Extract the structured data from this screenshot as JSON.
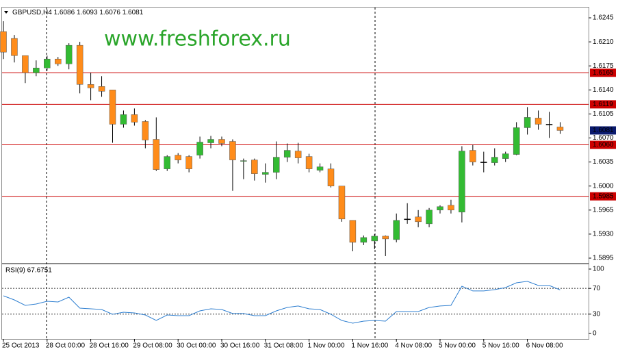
{
  "header": {
    "symbol": "GBPUSD,H4",
    "values": [
      "1.6086",
      "1.6093",
      "1.6076",
      "1.6081"
    ]
  },
  "watermark": "www.freshforex.ru",
  "chart_data": [
    {
      "type": "candlestick",
      "categories": [
        "25 Oct 2013",
        null,
        null,
        null,
        "28 Oct 00:00",
        null,
        null,
        null,
        "28 Oct 16:00",
        null,
        null,
        null,
        "29 Oct 08:00",
        null,
        null,
        null,
        "30 Oct 00:00",
        null,
        null,
        null,
        "30 Oct 16:00",
        null,
        null,
        null,
        "31 Oct 08:00",
        null,
        null,
        null,
        "1 Nov 00:00",
        null,
        null,
        null,
        "1 Nov 16:00",
        null,
        null,
        null,
        "4 Nov 08:00",
        null,
        null,
        null,
        "5 Nov 00:00",
        null,
        null,
        null,
        "5 Nov 16:00",
        null,
        null,
        null,
        "6 Nov 08:00",
        null,
        null,
        null
      ],
      "open": [
        1.6225,
        1.6215,
        1.619,
        1.6165,
        1.6172,
        1.6185,
        1.6178,
        1.6205,
        1.6148,
        1.6145,
        1.614,
        1.609,
        1.6104,
        1.6094,
        1.6068,
        1.6025,
        1.6045,
        1.6043,
        1.6045,
        1.6063,
        1.6068,
        1.6065,
        1.6036,
        1.6038,
        1.6017,
        1.602,
        1.6042,
        1.6051,
        1.6043,
        1.6023,
        1.6025,
        1.6,
        1.595,
        1.5918,
        1.592,
        1.5927,
        1.5922,
        1.5952,
        1.5955,
        1.5945,
        1.5965,
        1.5972,
        1.5962,
        1.6052,
        1.6035,
        1.6034,
        1.604,
        1.6046,
        1.6085,
        1.6099,
        1.609,
        1.6086
      ],
      "high": [
        1.624,
        1.622,
        1.619,
        1.6183,
        1.619,
        1.6188,
        1.6208,
        1.621,
        1.6165,
        1.616,
        1.614,
        1.611,
        1.6113,
        1.6096,
        1.61,
        1.6045,
        1.6048,
        1.6045,
        1.6072,
        1.6073,
        1.6072,
        1.6068,
        1.604,
        1.604,
        1.6033,
        1.6065,
        1.6062,
        1.6063,
        1.6047,
        1.6033,
        1.6033,
        1.6,
        1.595,
        1.5928,
        1.593,
        1.5928,
        1.596,
        1.5975,
        1.5965,
        1.5968,
        1.5972,
        1.598,
        1.6058,
        1.606,
        1.605,
        1.6055,
        1.605,
        1.6093,
        1.6115,
        1.611,
        1.6108,
        1.6093
      ],
      "low": [
        1.6185,
        1.618,
        1.615,
        1.616,
        1.6168,
        1.6175,
        1.617,
        1.6135,
        1.6125,
        1.613,
        1.6063,
        1.6085,
        1.6088,
        1.6055,
        1.6022,
        1.6022,
        1.6033,
        1.602,
        1.604,
        1.6055,
        1.6058,
        1.5993,
        1.601,
        1.6008,
        1.6005,
        1.601,
        1.6035,
        1.6033,
        1.602,
        1.602,
        1.5998,
        1.5948,
        1.5905,
        1.5914,
        1.5908,
        1.5898,
        1.5918,
        1.5945,
        1.594,
        1.594,
        1.596,
        1.596,
        1.5947,
        1.603,
        1.602,
        1.603,
        1.6035,
        1.6045,
        1.6075,
        1.6082,
        1.607,
        1.6076
      ],
      "close": [
        1.6195,
        1.619,
        1.6165,
        1.6172,
        1.6185,
        1.6178,
        1.6205,
        1.6148,
        1.6143,
        1.6138,
        1.609,
        1.6104,
        1.6093,
        1.6067,
        1.6024,
        1.6043,
        1.6038,
        1.6025,
        1.6064,
        1.6068,
        1.6062,
        1.6038,
        1.6037,
        1.6018,
        1.602,
        1.6042,
        1.6052,
        1.6041,
        1.6025,
        1.6028,
        1.6,
        1.5952,
        1.5918,
        1.5925,
        1.5927,
        1.5923,
        1.595,
        1.5952,
        1.5948,
        1.5965,
        1.597,
        1.5965,
        1.6051,
        1.6035,
        1.6035,
        1.6042,
        1.6047,
        1.6085,
        1.61,
        1.609,
        1.609,
        1.6081
      ],
      "up_color": "#33bb33",
      "down_color": "#ff8c1a",
      "doji_color": "#000000",
      "ylim": [
        1.5888,
        1.626
      ],
      "yticks": [
        {
          "value": 1.6245,
          "label": "1.6245"
        },
        {
          "value": 1.621,
          "label": "1.6210"
        },
        {
          "value": 1.6175,
          "label": "1.6175"
        },
        {
          "value": 1.614,
          "label": "1.6140"
        },
        {
          "value": 1.6105,
          "label": "1.6105"
        },
        {
          "value": 1.607,
          "label": "1.6070"
        },
        {
          "value": 1.6035,
          "label": "1.6035"
        },
        {
          "value": 1.6,
          "label": "1.6000"
        },
        {
          "value": 1.5965,
          "label": "1.5965"
        },
        {
          "value": 1.593,
          "label": "1.5930"
        },
        {
          "value": 1.5895,
          "label": "1.5895"
        }
      ],
      "hlines": [
        {
          "value": 1.6165,
          "label": "1.6165"
        },
        {
          "value": 1.6119,
          "label": "1.6119"
        },
        {
          "value": 1.606,
          "label": "1.6060"
        },
        {
          "value": 1.5985,
          "label": "1.5985"
        }
      ],
      "hline_color": "#cc0000",
      "current_price": {
        "value": 1.6081,
        "label": "1.6081"
      },
      "current_color": "#0a1a6e"
    },
    {
      "type": "line",
      "title": "RSI(9) 67.6751",
      "color": "#2f7fd0",
      "values": [
        58.5,
        52.1,
        43.6,
        45.7,
        50,
        48.9,
        56.4,
        39.4,
        38.3,
        37.2,
        29.8,
        33,
        31.9,
        28.7,
        20.2,
        28.7,
        27.7,
        27.7,
        35.1,
        38.3,
        37.2,
        30.9,
        30.9,
        27.7,
        27.7,
        35.1,
        40.4,
        42.6,
        38.3,
        37.2,
        29.8,
        20.2,
        16,
        19.1,
        20.2,
        19.1,
        34,
        34,
        34,
        40.4,
        42.6,
        43.6,
        73.4,
        66,
        66,
        68.1,
        71.3,
        78.7,
        80.9,
        74.5,
        74.5,
        67.6751
      ],
      "ylim": [
        -8.5,
        107.4
      ],
      "yticks": [
        100,
        70,
        30,
        0
      ],
      "levels": [
        70,
        30
      ]
    }
  ]
}
